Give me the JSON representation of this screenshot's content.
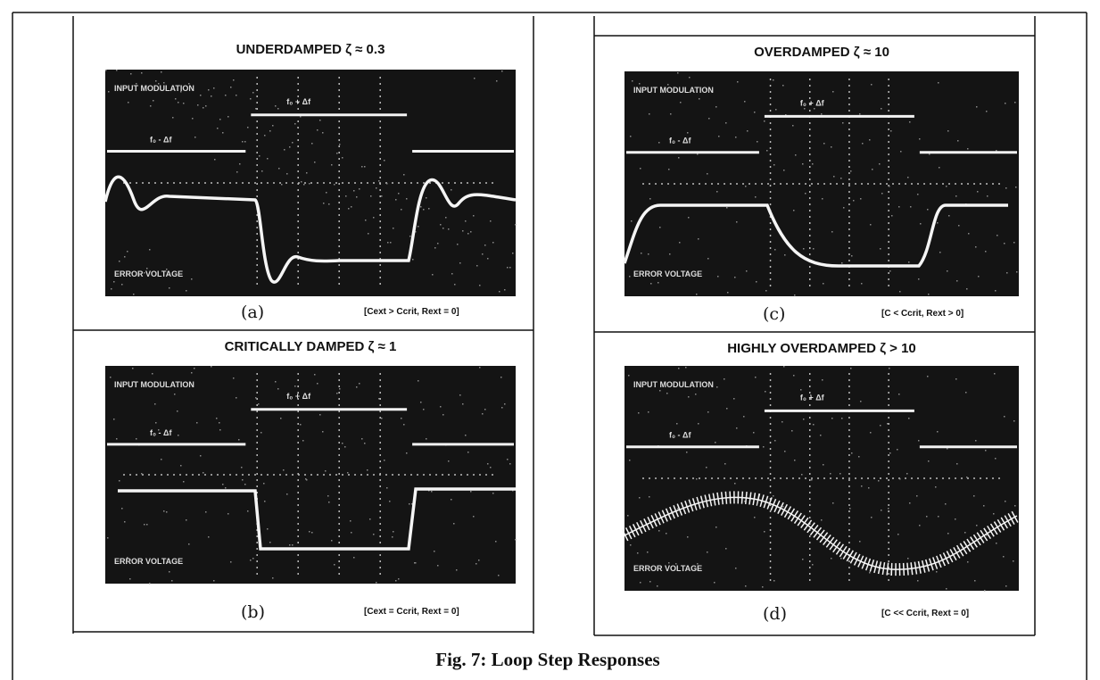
{
  "panels": [
    {
      "title": "UNDERDAMPED ζ ≈ 0.3",
      "input_label": "INPUT MODULATION",
      "low_label": "f₀ - Δf",
      "high_label": "f₀ + Δf",
      "error_label": "ERROR VOLTAGE",
      "letter": "(a)",
      "condition": "[Cext > Ccrit, Rext = 0]"
    },
    {
      "title": "CRITICALLY DAMPED ζ ≈ 1",
      "input_label": "INPUT MODULATION",
      "low_label": "f₀ - Δf",
      "high_label": "f₀ + Δf",
      "error_label": "ERROR VOLTAGE",
      "letter": "(b)",
      "condition": "[Cext = Ccrit, Rext = 0]"
    },
    {
      "title": "OVERDAMPED ζ ≈ 10",
      "input_label": "INPUT MODULATION",
      "low_label": "f₀ - Δf",
      "high_label": "f₀ + Δf",
      "error_label": "ERROR VOLTAGE",
      "letter": "(c)",
      "condition": "[C < Ccrit, Rext > 0]"
    },
    {
      "title": "HIGHLY OVERDAMPED ζ > 10",
      "input_label": "INPUT MODULATION",
      "low_label": "f₀ - Δf",
      "high_label": "f₀ + Δf",
      "error_label": "ERROR VOLTAGE",
      "letter": "(d)",
      "condition": "[C << Ccrit, Rext = 0]"
    }
  ],
  "caption": "Fig. 7: Loop Step Responses"
}
